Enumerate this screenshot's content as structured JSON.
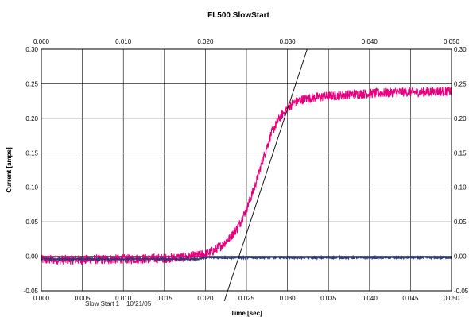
{
  "chart_data": {
    "type": "line",
    "title": "FL500 SlowStart",
    "xlabel": "Time [sec]",
    "ylabel": "Current [amps]",
    "footer": "Slow Start 1    10/21/05",
    "xlim": [
      0.0,
      0.05
    ],
    "ylim": [
      -0.05,
      0.3
    ],
    "grid": true,
    "bottom_x_ticks": [
      "0.000",
      "0.005",
      "0.010",
      "0.015",
      "0.020",
      "0.025",
      "0.030",
      "0.035",
      "0.040",
      "0.045",
      "0.050"
    ],
    "top_x_ticks": [
      "0.000",
      "0.010",
      "0.020",
      "0.030",
      "0.040",
      "0.050"
    ],
    "left_y_ticks": [
      "-0.05",
      "0.00",
      "0.05",
      "0.10",
      "0.15",
      "0.20",
      "0.25",
      "0.30"
    ],
    "right_y_ticks": [
      "-0.05",
      "0.00",
      "0.05",
      "0.10",
      "0.15",
      "0.20",
      "0.25",
      "0.30"
    ],
    "series": [
      {
        "color": "#e6007e",
        "x": [
          0.0,
          0.005,
          0.01,
          0.015,
          0.018,
          0.02,
          0.021,
          0.022,
          0.023,
          0.024,
          0.025,
          0.026,
          0.027,
          0.028,
          0.029,
          0.03,
          0.031,
          0.032,
          0.034,
          0.036,
          0.038,
          0.04,
          0.042,
          0.044,
          0.046,
          0.048,
          0.05
        ],
        "y": [
          -0.005,
          -0.005,
          -0.004,
          -0.003,
          -0.001,
          0.003,
          0.008,
          0.016,
          0.027,
          0.043,
          0.068,
          0.1,
          0.14,
          0.177,
          0.2,
          0.215,
          0.224,
          0.228,
          0.231,
          0.233,
          0.235,
          0.236,
          0.237,
          0.238,
          0.238,
          0.239,
          0.239
        ]
      },
      {
        "color": "#2e3a78",
        "x": [
          0.0,
          0.019,
          0.02,
          0.05
        ],
        "y": [
          -0.004,
          -0.004,
          -0.002,
          -0.002
        ]
      }
    ],
    "tangent_line": {
      "color": "#000000",
      "x": [
        0.0223,
        0.0324
      ],
      "y": [
        -0.065,
        0.3
      ]
    }
  }
}
